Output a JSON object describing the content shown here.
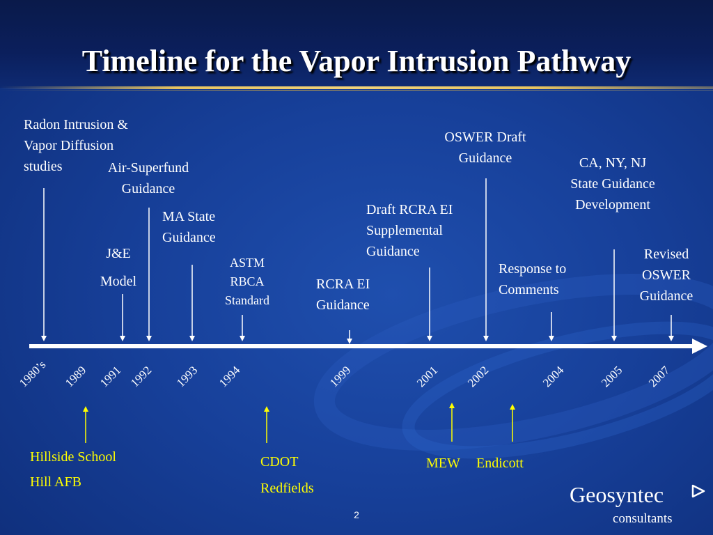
{
  "title": "Timeline for the Vapor Intrusion Pathway",
  "colors": {
    "background": "#17409a",
    "title_band": "#0b1f5c",
    "gold_rule": "#e8c460",
    "text": "#ffffff",
    "site_labels": "#ffff00"
  },
  "events": [
    {
      "id": "radon",
      "lines": [
        "Radon Intrusion &",
        "Vapor Diffusion",
        "studies"
      ]
    },
    {
      "id": "air_superfund",
      "lines": [
        "Air-Superfund",
        "Guidance"
      ]
    },
    {
      "id": "je_model",
      "lines": [
        "J&E",
        "Model"
      ]
    },
    {
      "id": "ma_state",
      "lines": [
        "MA State",
        "Guidance"
      ]
    },
    {
      "id": "astm",
      "lines": [
        "ASTM",
        "RBCA",
        "Standard"
      ]
    },
    {
      "id": "rcra_ei",
      "lines": [
        "RCRA EI",
        "Guidance"
      ]
    },
    {
      "id": "draft_rcra",
      "lines": [
        "Draft RCRA EI",
        "Supplemental",
        "Guidance"
      ]
    },
    {
      "id": "oswer_draft",
      "lines": [
        "OSWER Draft",
        "Guidance"
      ]
    },
    {
      "id": "response",
      "lines": [
        "Response to",
        "Comments"
      ]
    },
    {
      "id": "ca_ny_nj",
      "lines": [
        "CA, NY, NJ",
        "State Guidance",
        "Development"
      ]
    },
    {
      "id": "revised_oswer",
      "lines": [
        "Revised",
        "OSWER",
        "Guidance"
      ]
    }
  ],
  "years": [
    "1980’s",
    "1989",
    "1991",
    "1992",
    "1993",
    "1994",
    "1999",
    "2001",
    "2002",
    "2004",
    "2005",
    "2007"
  ],
  "sites": [
    {
      "id": "hillside",
      "lines": [
        "Hillside School",
        "Hill AFB"
      ]
    },
    {
      "id": "cdot",
      "lines": [
        "CDOT",
        "Redfields"
      ]
    },
    {
      "id": "mew",
      "lines": [
        "MEW"
      ]
    },
    {
      "id": "endicott",
      "lines": [
        "Endicott"
      ]
    }
  ],
  "logo": {
    "name": "Geosyntec",
    "sub": "consultants"
  },
  "page_number": "2"
}
